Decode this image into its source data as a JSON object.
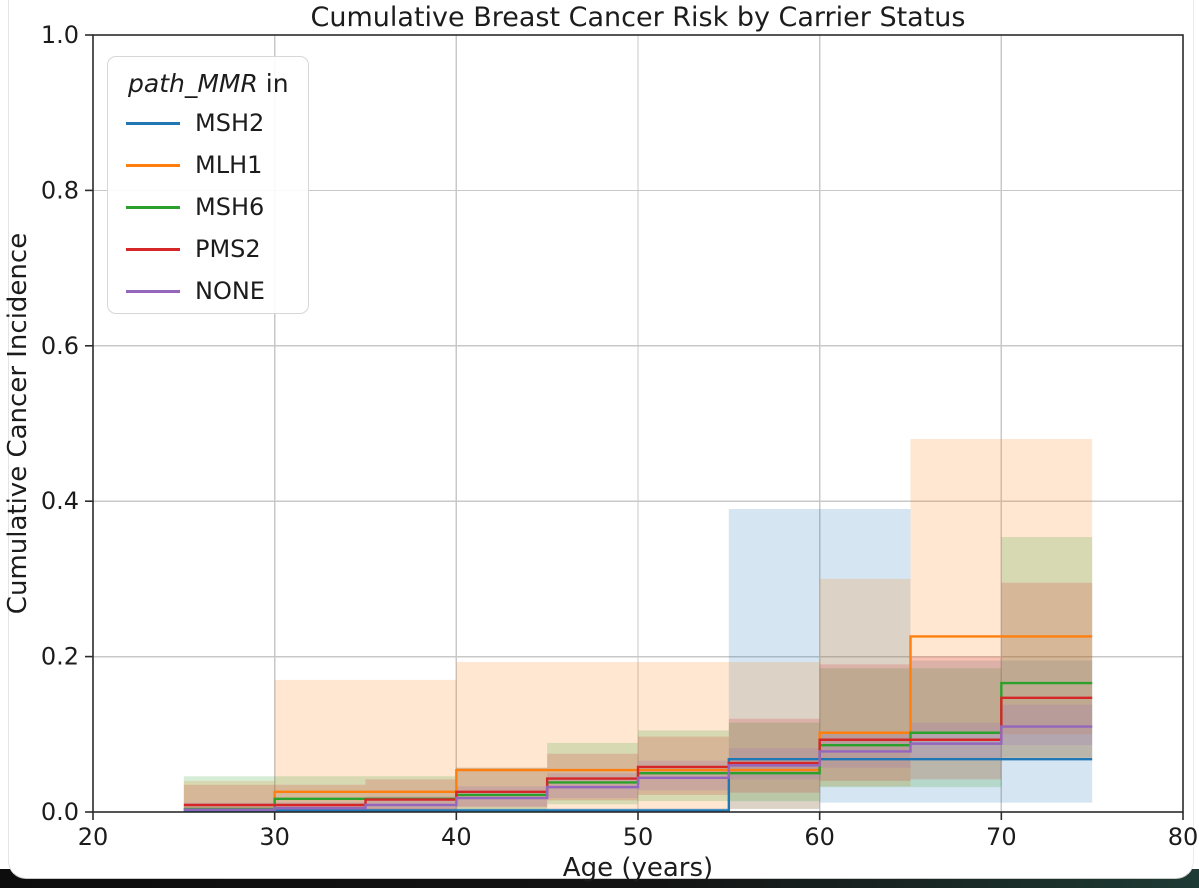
{
  "figure": {
    "title": "Cumulative Breast Cancer Risk by Carrier Status",
    "xlabel": "Age (years)",
    "ylabel": "Cumulative Cancer Incidence",
    "legend_title_italic": "path_MMR",
    "legend_title_suffix": " in"
  },
  "chart_data": {
    "type": "line",
    "subtype": "step-cumulative-incidence-with-confidence-bands",
    "title": "Cumulative Breast Cancer Risk by Carrier Status",
    "xlabel": "Age (years)",
    "ylabel": "Cumulative Cancer Incidence",
    "xlim": [
      20,
      80
    ],
    "ylim": [
      0.0,
      1.0
    ],
    "xticks": [
      20,
      30,
      40,
      50,
      60,
      70,
      80
    ],
    "xtick_labels": [
      "20",
      "30",
      "40",
      "50",
      "60",
      "70",
      "80"
    ],
    "yticks": [
      0.0,
      0.2,
      0.4,
      0.6,
      0.8,
      1.0
    ],
    "ytick_labels": [
      "0.0",
      "0.2",
      "0.4",
      "0.6",
      "0.8",
      "1.0"
    ],
    "grid": true,
    "grid_color": "#c8c8c8",
    "legend_position": "upper-left",
    "legend_title": "path_MMR in",
    "x_start": 25,
    "x_end": 75,
    "series": [
      {
        "name": "MSH2",
        "color": "#1f77b4",
        "steps": [
          [
            25,
            0.002
          ],
          [
            55,
            0.068
          ],
          [
            75,
            0.068
          ]
        ],
        "band": [
          [
            25,
            0.0,
            0.005
          ],
          [
            55,
            0.004,
            0.39
          ],
          [
            60,
            0.012,
            0.39
          ],
          [
            65,
            0.012,
            0.195
          ]
        ]
      },
      {
        "name": "MLH1",
        "color": "#ff7f0e",
        "steps": [
          [
            25,
            0.004
          ],
          [
            30,
            0.026
          ],
          [
            40,
            0.054
          ],
          [
            60,
            0.102
          ],
          [
            65,
            0.226
          ],
          [
            75,
            0.226
          ]
        ],
        "band": [
          [
            25,
            0.0,
            0.04
          ],
          [
            30,
            0.0,
            0.17
          ],
          [
            40,
            0.004,
            0.193
          ],
          [
            60,
            0.033,
            0.3
          ],
          [
            65,
            0.1,
            0.48
          ]
        ]
      },
      {
        "name": "MSH6",
        "color": "#2ca02c",
        "steps": [
          [
            25,
            0.004
          ],
          [
            30,
            0.017
          ],
          [
            40,
            0.022
          ],
          [
            45,
            0.038
          ],
          [
            50,
            0.05
          ],
          [
            60,
            0.086
          ],
          [
            65,
            0.102
          ],
          [
            70,
            0.166
          ],
          [
            75,
            0.166
          ]
        ],
        "band": [
          [
            25,
            0.0,
            0.046
          ],
          [
            40,
            0.003,
            0.057
          ],
          [
            45,
            0.01,
            0.089
          ],
          [
            50,
            0.014,
            0.105
          ],
          [
            55,
            0.014,
            0.115
          ],
          [
            60,
            0.032,
            0.185
          ],
          [
            70,
            0.07,
            0.354
          ]
        ]
      },
      {
        "name": "PMS2",
        "color": "#d62728",
        "steps": [
          [
            25,
            0.009
          ],
          [
            35,
            0.016
          ],
          [
            40,
            0.026
          ],
          [
            45,
            0.043
          ],
          [
            50,
            0.058
          ],
          [
            55,
            0.063
          ],
          [
            60,
            0.093
          ],
          [
            70,
            0.147
          ],
          [
            75,
            0.147
          ]
        ],
        "band": [
          [
            25,
            0.0,
            0.035
          ],
          [
            35,
            0.002,
            0.042
          ],
          [
            40,
            0.006,
            0.057
          ],
          [
            45,
            0.015,
            0.075
          ],
          [
            50,
            0.022,
            0.097
          ],
          [
            55,
            0.025,
            0.12
          ],
          [
            60,
            0.04,
            0.19
          ],
          [
            65,
            0.042,
            0.2
          ],
          [
            70,
            0.068,
            0.295
          ]
        ]
      },
      {
        "name": "NONE",
        "color": "#9467bd",
        "steps": [
          [
            25,
            0.003
          ],
          [
            30,
            0.005
          ],
          [
            35,
            0.009
          ],
          [
            40,
            0.018
          ],
          [
            45,
            0.032
          ],
          [
            50,
            0.044
          ],
          [
            55,
            0.06
          ],
          [
            60,
            0.078
          ],
          [
            65,
            0.088
          ],
          [
            70,
            0.11
          ],
          [
            75,
            0.11
          ]
        ],
        "band": [
          [
            25,
            0.0,
            0.012
          ],
          [
            35,
            0.002,
            0.02
          ],
          [
            40,
            0.007,
            0.033
          ],
          [
            45,
            0.018,
            0.05
          ],
          [
            50,
            0.028,
            0.066
          ],
          [
            55,
            0.042,
            0.082
          ],
          [
            60,
            0.057,
            0.1
          ],
          [
            65,
            0.068,
            0.115
          ],
          [
            70,
            0.086,
            0.138
          ]
        ]
      }
    ],
    "band_opacity": 0.19
  }
}
